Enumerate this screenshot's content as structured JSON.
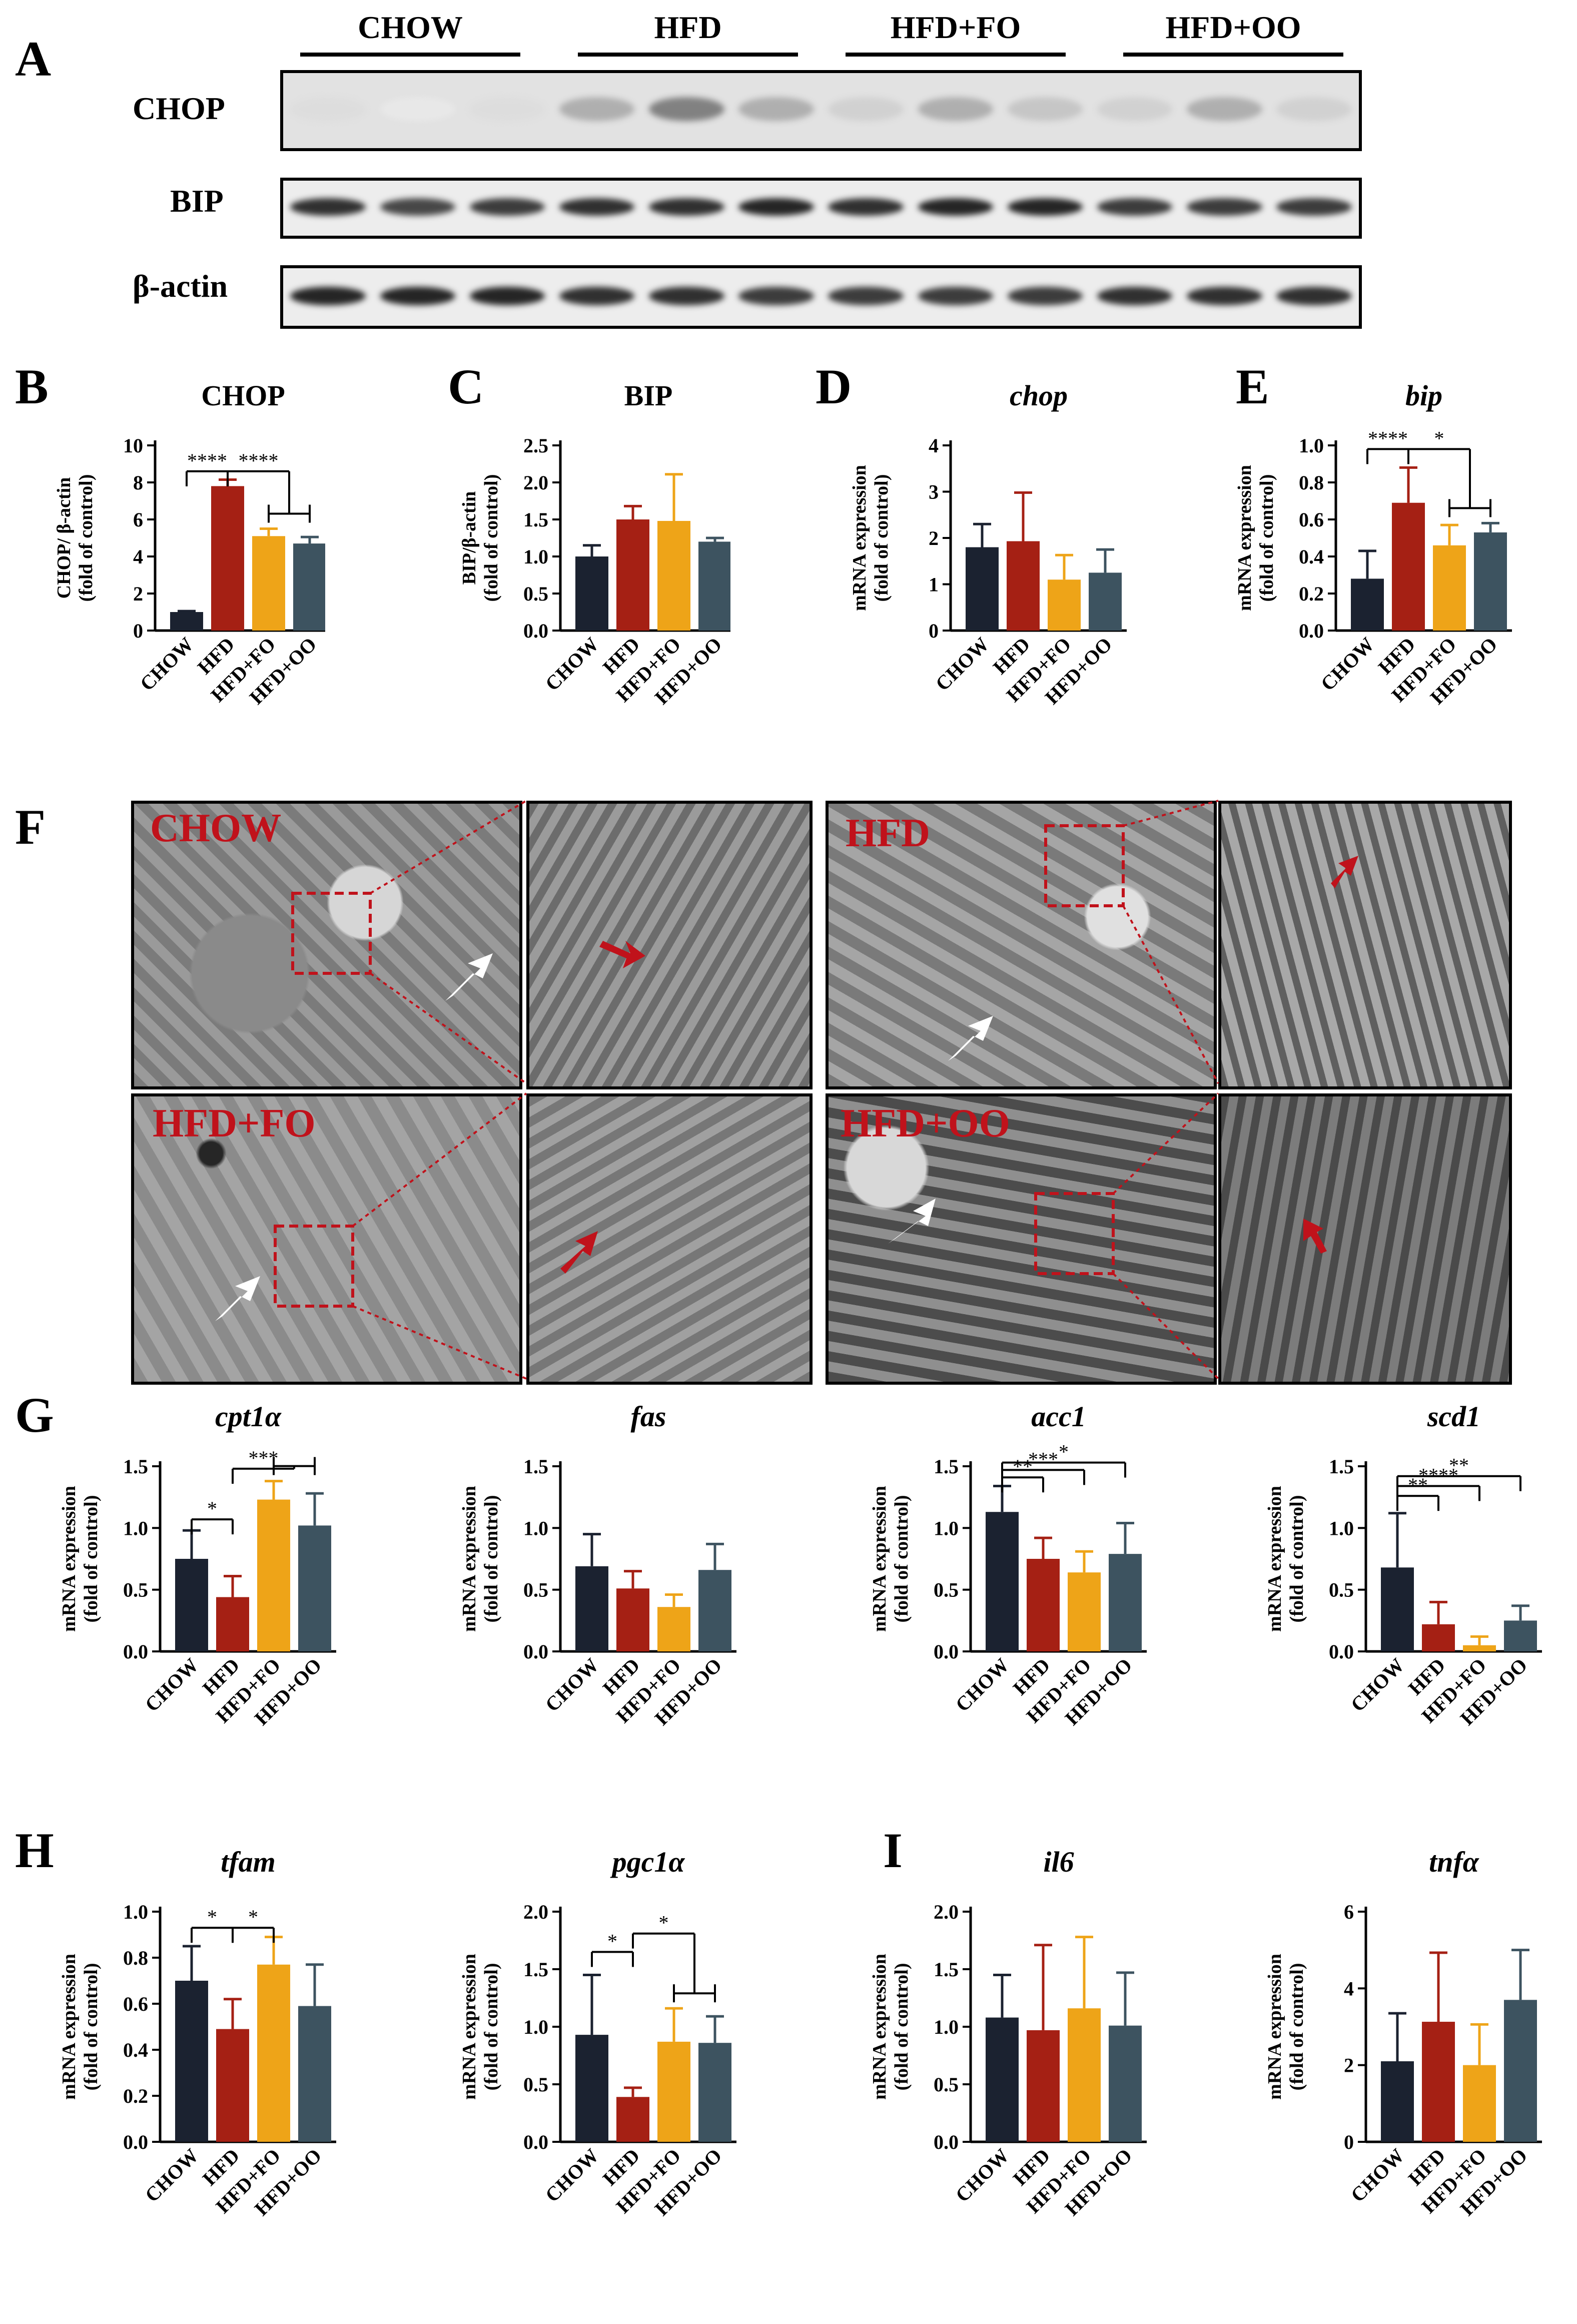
{
  "panels": {
    "A": "A",
    "B": "B",
    "C": "C",
    "D": "D",
    "E": "E",
    "F": "F",
    "G": "G",
    "H": "H",
    "I": "I"
  },
  "western": {
    "groups": [
      "CHOW",
      "HFD",
      "HFD+FO",
      "HFD+OO"
    ],
    "rows": [
      "CHOP",
      "BIP",
      "β-actin"
    ]
  },
  "em": {
    "labels": [
      "CHOW",
      "HFD",
      "HFD+FO",
      "HFD+OO"
    ]
  },
  "colors": {
    "CHOW": "#1b2230",
    "HFD": "#a52014",
    "HFD+FO": "#eea418",
    "HFD+OO": "#3d5360",
    "em_label": "#c0121b",
    "box": "#c0121b"
  },
  "chart_data": [
    {
      "id": "B",
      "type": "bar",
      "title": "CHOP",
      "title_italic": false,
      "ylabel": [
        "CHOP/ β-actin",
        "(fold of control)"
      ],
      "categories": [
        "CHOW",
        "HFD",
        "HFD+FO",
        "HFD+OO"
      ],
      "values": [
        1.0,
        7.8,
        5.1,
        4.7
      ],
      "errors": [
        0.05,
        0.35,
        0.4,
        0.35
      ],
      "ylim": [
        0,
        10
      ],
      "yticks": [
        "0",
        "2",
        "4",
        "6",
        "8",
        "10"
      ],
      "ytickvals": [
        0,
        2,
        4,
        6,
        8,
        10
      ],
      "sig": [
        {
          "a": 0,
          "b": 1,
          "text": "****",
          "y": 8.6
        },
        {
          "a": 1,
          "b": [
            2,
            3
          ],
          "text": "****",
          "y": 8.6
        }
      ]
    },
    {
      "id": "C",
      "type": "bar",
      "title": "BIP",
      "title_italic": false,
      "ylabel": [
        "BIP/β-actin",
        "(fold of control)"
      ],
      "categories": [
        "CHOW",
        "HFD",
        "HFD+FO",
        "HFD+OO"
      ],
      "values": [
        1.0,
        1.5,
        1.48,
        1.2
      ],
      "errors": [
        0.15,
        0.18,
        0.63,
        0.05
      ],
      "ylim": [
        0,
        2.5
      ],
      "yticks": [
        "0.0",
        "0.5",
        "1.0",
        "1.5",
        "2.0",
        "2.5"
      ],
      "ytickvals": [
        0,
        0.5,
        1,
        1.5,
        2,
        2.5
      ],
      "sig": []
    },
    {
      "id": "D",
      "type": "bar",
      "title": "chop",
      "title_italic": true,
      "ylabel": [
        "mRNA expression",
        "(fold of control)"
      ],
      "categories": [
        "CHOW",
        "HFD",
        "HFD+FO",
        "HFD+OO"
      ],
      "values": [
        1.8,
        1.93,
        1.1,
        1.25
      ],
      "errors": [
        0.5,
        1.05,
        0.53,
        0.5
      ],
      "ylim": [
        0,
        4
      ],
      "yticks": [
        "0",
        "1",
        "2",
        "3",
        "4"
      ],
      "ytickvals": [
        0,
        1,
        2,
        3,
        4
      ],
      "sig": []
    },
    {
      "id": "E",
      "type": "bar",
      "title": "bip",
      "title_italic": true,
      "ylabel": [
        "mRNA expression",
        "(fold of control)"
      ],
      "categories": [
        "CHOW",
        "HFD",
        "HFD+FO",
        "HFD+OO"
      ],
      "values": [
        0.28,
        0.69,
        0.46,
        0.53
      ],
      "errors": [
        0.15,
        0.19,
        0.11,
        0.05
      ],
      "ylim": [
        0,
        1.0
      ],
      "yticks": [
        "0.0",
        "0.2",
        "0.4",
        "0.6",
        "0.8",
        "1.0"
      ],
      "ytickvals": [
        0,
        0.2,
        0.4,
        0.6,
        0.8,
        1.0
      ],
      "sig": [
        {
          "a": 0,
          "b": 1,
          "text": "****",
          "y": 0.98
        },
        {
          "a": 1,
          "b": [
            2,
            3
          ],
          "text": "*",
          "y": 0.98
        }
      ]
    },
    {
      "id": "G1",
      "type": "bar",
      "title": "cpt1α",
      "title_italic": true,
      "ylabel": [
        "mRNA expression",
        "(fold of control)"
      ],
      "categories": [
        "CHOW",
        "HFD",
        "HFD+FO",
        "HFD+OO"
      ],
      "values": [
        0.75,
        0.44,
        1.23,
        1.02
      ],
      "errors": [
        0.23,
        0.17,
        0.15,
        0.26
      ],
      "ylim": [
        0,
        1.5
      ],
      "yticks": [
        "0.0",
        "0.5",
        "1.0",
        "1.5"
      ],
      "ytickvals": [
        0,
        0.5,
        1.0,
        1.5
      ],
      "sig": [
        {
          "a": 0,
          "b": 1,
          "text": "*",
          "y": 1.07
        },
        {
          "a": 1,
          "b": [
            2,
            3
          ],
          "text": "***",
          "y": 1.48
        }
      ]
    },
    {
      "id": "G2",
      "type": "bar",
      "title": "fas",
      "title_italic": true,
      "ylabel": [
        "mRNA expression",
        "(fold of control)"
      ],
      "categories": [
        "CHOW",
        "HFD",
        "HFD+FO",
        "HFD+OO"
      ],
      "values": [
        0.69,
        0.51,
        0.36,
        0.66
      ],
      "errors": [
        0.26,
        0.14,
        0.1,
        0.21
      ],
      "ylim": [
        0,
        1.5
      ],
      "yticks": [
        "0.0",
        "0.5",
        "1.0",
        "1.5"
      ],
      "ytickvals": [
        0,
        0.5,
        1.0,
        1.5
      ],
      "sig": []
    },
    {
      "id": "G3",
      "type": "bar",
      "title": "acc1",
      "title_italic": true,
      "ylabel": [
        "mRNA expression",
        "(fold of control)"
      ],
      "categories": [
        "CHOW",
        "HFD",
        "HFD+FO",
        "HFD+OO"
      ],
      "values": [
        1.13,
        0.75,
        0.64,
        0.79
      ],
      "errors": [
        0.21,
        0.17,
        0.17,
        0.25
      ],
      "ylim": [
        0,
        1.5
      ],
      "yticks": [
        "0.0",
        "0.5",
        "1.0",
        "1.5"
      ],
      "ytickvals": [
        0,
        0.5,
        1.0,
        1.5
      ],
      "sig": [
        {
          "a": 0,
          "b": 1,
          "text": "**",
          "y": 1.41
        },
        {
          "a": 0,
          "b": 2,
          "text": "***",
          "y": 1.47
        },
        {
          "a": 0,
          "b": 3,
          "text": "*",
          "y": 1.53
        }
      ]
    },
    {
      "id": "G4",
      "type": "bar",
      "title": "scd1",
      "title_italic": true,
      "ylabel": [
        "mRNA expression",
        "(fold of control)"
      ],
      "categories": [
        "CHOW",
        "HFD",
        "HFD+FO",
        "HFD+OO"
      ],
      "values": [
        0.68,
        0.22,
        0.05,
        0.25
      ],
      "errors": [
        0.44,
        0.18,
        0.07,
        0.12
      ],
      "ylim": [
        0,
        1.5
      ],
      "yticks": [
        "0.0",
        "0.5",
        "1.0",
        "1.5"
      ],
      "ytickvals": [
        0,
        0.5,
        1.0,
        1.5
      ],
      "sig": [
        {
          "a": 0,
          "b": 1,
          "text": "**",
          "y": 1.26
        },
        {
          "a": 0,
          "b": 2,
          "text": "****",
          "y": 1.34
        },
        {
          "a": 0,
          "b": 3,
          "text": "**",
          "y": 1.42
        }
      ]
    },
    {
      "id": "H1",
      "type": "bar",
      "title": "tfam",
      "title_italic": true,
      "ylabel": [
        "mRNA expression",
        "(fold of control)"
      ],
      "categories": [
        "CHOW",
        "HFD",
        "HFD+FO",
        "HFD+OO"
      ],
      "values": [
        0.7,
        0.49,
        0.77,
        0.59
      ],
      "errors": [
        0.15,
        0.13,
        0.12,
        0.18
      ],
      "ylim": [
        0,
        1.0
      ],
      "yticks": [
        "0.0",
        "0.2",
        "0.4",
        "0.6",
        "0.8",
        "1.0"
      ],
      "ytickvals": [
        0,
        0.2,
        0.4,
        0.6,
        0.8,
        1.0
      ],
      "sig": [
        {
          "a": 0,
          "b": 1,
          "text": "*",
          "y": 0.93
        },
        {
          "a": 1,
          "b": 2,
          "text": "*",
          "y": 0.93
        }
      ]
    },
    {
      "id": "H2",
      "type": "bar",
      "title": "pgc1α",
      "title_italic": true,
      "ylabel": [
        "mRNA expression",
        "(fold of control)"
      ],
      "categories": [
        "CHOW",
        "HFD",
        "HFD+FO",
        "HFD+OO"
      ],
      "values": [
        0.93,
        0.39,
        0.87,
        0.86
      ],
      "errors": [
        0.52,
        0.08,
        0.29,
        0.23
      ],
      "ylim": [
        0,
        2.0
      ],
      "yticks": [
        "0.0",
        "0.5",
        "1.0",
        "1.5",
        "2.0"
      ],
      "ytickvals": [
        0,
        0.5,
        1.0,
        1.5,
        2.0
      ],
      "sig": [
        {
          "a": 0,
          "b": 1,
          "text": "*",
          "y": 1.65
        },
        {
          "a": 1,
          "b": [
            2,
            3
          ],
          "text": "*",
          "y": 1.81
        }
      ]
    },
    {
      "id": "I1",
      "type": "bar",
      "title": "il6",
      "title_italic": true,
      "ylabel": [
        "mRNA expression",
        "(fold of control)"
      ],
      "categories": [
        "CHOW",
        "HFD",
        "HFD+FO",
        "HFD+OO"
      ],
      "values": [
        1.08,
        0.97,
        1.16,
        1.01
      ],
      "errors": [
        0.37,
        0.74,
        0.62,
        0.46
      ],
      "ylim": [
        0,
        2.0
      ],
      "yticks": [
        "0.0",
        "0.5",
        "1.0",
        "1.5",
        "2.0"
      ],
      "ytickvals": [
        0,
        0.5,
        1.0,
        1.5,
        2.0
      ],
      "sig": []
    },
    {
      "id": "I2",
      "type": "bar",
      "title": "tnfα",
      "title_italic": true,
      "ylabel": [
        "mRNA expression",
        "(fold of control)"
      ],
      "categories": [
        "CHOW",
        "HFD",
        "HFD+FO",
        "HFD+OO"
      ],
      "values": [
        2.1,
        3.13,
        2.0,
        3.7
      ],
      "errors": [
        1.25,
        1.8,
        1.06,
        1.3
      ],
      "ylim": [
        0,
        6
      ],
      "yticks": [
        "0",
        "2",
        "4",
        "6"
      ],
      "ytickvals": [
        0,
        2,
        4,
        6
      ],
      "sig": []
    }
  ]
}
